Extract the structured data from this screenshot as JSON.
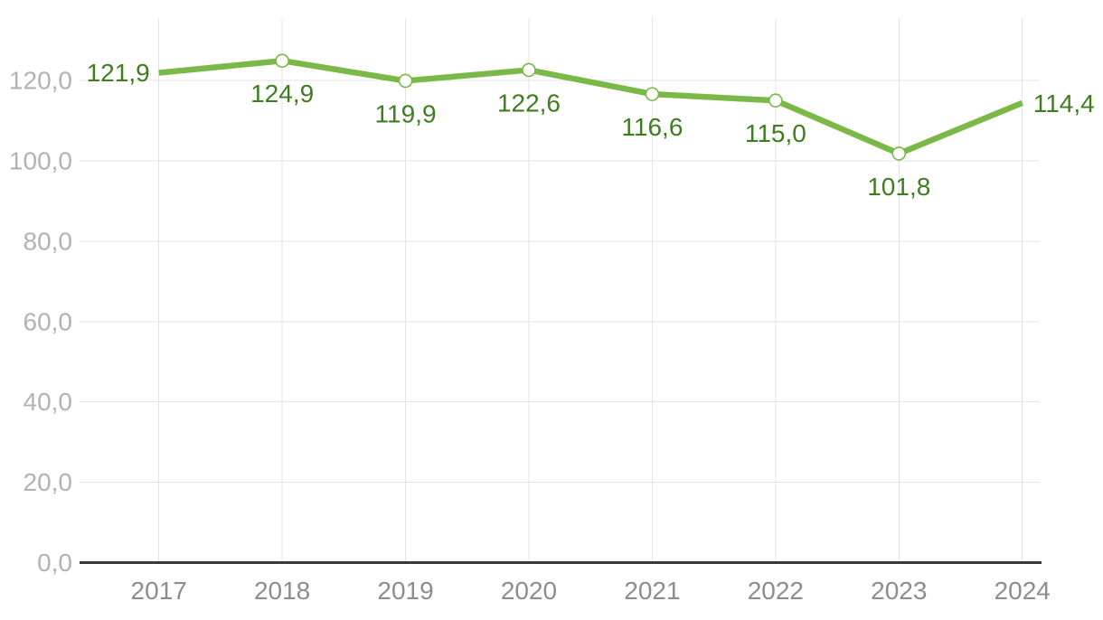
{
  "chart_data": {
    "type": "line",
    "title": "",
    "xlabel": "",
    "ylabel": "",
    "categories": [
      "2017",
      "2018",
      "2019",
      "2020",
      "2021",
      "2022",
      "2023",
      "2024"
    ],
    "series": [
      {
        "name": "value-series",
        "values": [
          121.9,
          124.9,
          119.9,
          122.6,
          116.6,
          115.0,
          101.8,
          114.4
        ],
        "value_labels": [
          "121,9",
          "124,9",
          "119,9",
          "122,6",
          "116,6",
          "115,0",
          "101,8",
          "114,4"
        ],
        "label_placement": [
          "left",
          "below",
          "below",
          "below",
          "below",
          "below",
          "below",
          "right"
        ],
        "markers": [
          false,
          true,
          true,
          true,
          true,
          true,
          true,
          false
        ],
        "color": "#7ab848"
      }
    ],
    "y_ticks": [
      {
        "value": 0,
        "label": "0,0"
      },
      {
        "value": 20,
        "label": "20,0"
      },
      {
        "value": 40,
        "label": "40,0"
      },
      {
        "value": 60,
        "label": "60,0"
      },
      {
        "value": 80,
        "label": "80,0"
      },
      {
        "value": 100,
        "label": "100,0"
      },
      {
        "value": 120,
        "label": "120,0"
      }
    ],
    "ylim": [
      0,
      135.5
    ],
    "grid": {
      "horizontal": true,
      "vertical": true
    },
    "legend": "none",
    "decimal_separator": ",",
    "colors": {
      "line": "#7ab848",
      "marker_fill": "#ffffff",
      "value_label": "#3e7d20",
      "y_tick_label": "#b2b2b2",
      "x_tick_label": "#8d8d8d",
      "gridline": "#e3e3e3",
      "axis_line": "#3a3a3a",
      "background": "#ffffff"
    }
  }
}
